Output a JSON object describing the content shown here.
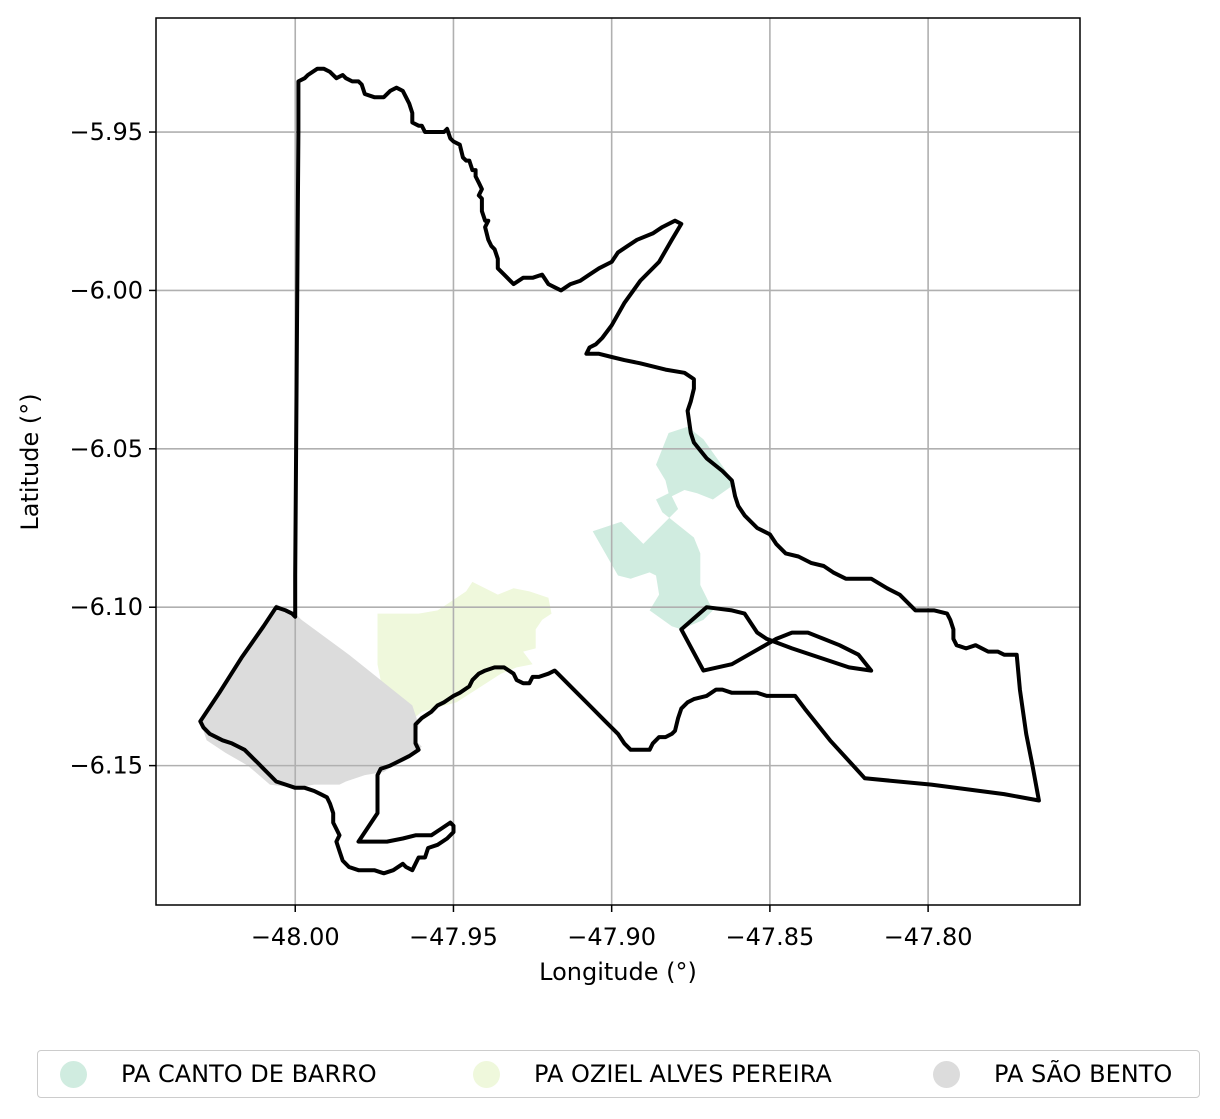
{
  "chart_data": {
    "type": "map",
    "xlabel": "Longitude (°)",
    "ylabel": "Latitude (°)",
    "xlim": [
      -48.044,
      -47.752
    ],
    "ylim": [
      -6.194,
      -5.914
    ],
    "xticks": [
      -48.0,
      -47.95,
      -47.9,
      -47.85,
      -47.8
    ],
    "xtick_labels": [
      "−48.00",
      "−47.95",
      "−47.90",
      "−47.85",
      "−47.80"
    ],
    "yticks": [
      -5.95,
      -6.0,
      -6.05,
      -6.1,
      -6.15
    ],
    "ytick_labels": [
      "−5.95",
      "−6.00",
      "−6.05",
      "−6.10",
      "−6.15"
    ],
    "grid": true,
    "legend_placement": "bottom-center",
    "outline_color": "#000000",
    "regions": [
      {
        "name": "PA CANTO DE BARRO",
        "color": "#d0ece0",
        "coords": [
          [
            -47.906,
            -6.076
          ],
          [
            -47.897,
            -6.073
          ],
          [
            -47.89,
            -6.08
          ],
          [
            -47.884,
            -6.074
          ],
          [
            -47.879,
            -6.069
          ],
          [
            -47.881,
            -6.065
          ],
          [
            -47.877,
            -6.063
          ],
          [
            -47.873,
            -6.064
          ],
          [
            -47.868,
            -6.066
          ],
          [
            -47.861,
            -6.061
          ],
          [
            -47.871,
            -6.047
          ],
          [
            -47.876,
            -6.043
          ],
          [
            -47.882,
            -6.045
          ],
          [
            -47.886,
            -6.055
          ],
          [
            -47.883,
            -6.06
          ],
          [
            -47.882,
            -6.064
          ],
          [
            -47.886,
            -6.066
          ],
          [
            -47.884,
            -6.07
          ],
          [
            -47.879,
            -6.074
          ],
          [
            -47.874,
            -6.078
          ],
          [
            -47.872,
            -6.083
          ],
          [
            -47.872,
            -6.093
          ],
          [
            -47.868,
            -6.101
          ],
          [
            -47.871,
            -6.104
          ],
          [
            -47.878,
            -6.107
          ],
          [
            -47.881,
            -6.106
          ],
          [
            -47.888,
            -6.101
          ],
          [
            -47.885,
            -6.096
          ],
          [
            -47.886,
            -6.09
          ],
          [
            -47.888,
            -6.089
          ],
          [
            -47.894,
            -6.091
          ],
          [
            -47.898,
            -6.09
          ]
        ]
      },
      {
        "name": "PA OZIEL ALVES PEREIRA",
        "color": "#eff8dc",
        "coords": [
          [
            -47.974,
            -6.102
          ],
          [
            -47.961,
            -6.102
          ],
          [
            -47.955,
            -6.101
          ],
          [
            -47.952,
            -6.099
          ],
          [
            -47.946,
            -6.095
          ],
          [
            -47.944,
            -6.092
          ],
          [
            -47.936,
            -6.096
          ],
          [
            -47.931,
            -6.094
          ],
          [
            -47.926,
            -6.095
          ],
          [
            -47.92,
            -6.097
          ],
          [
            -47.919,
            -6.102
          ],
          [
            -47.922,
            -6.104
          ],
          [
            -47.924,
            -6.107
          ],
          [
            -47.924,
            -6.113
          ],
          [
            -47.928,
            -6.114
          ],
          [
            -47.925,
            -6.118
          ],
          [
            -47.93,
            -6.119
          ],
          [
            -47.935,
            -6.121
          ],
          [
            -47.949,
            -6.13
          ],
          [
            -47.96,
            -6.133
          ],
          [
            -47.966,
            -6.138
          ],
          [
            -47.967,
            -6.144
          ],
          [
            -47.972,
            -6.128
          ],
          [
            -47.974,
            -6.118
          ]
        ]
      },
      {
        "name": "PA SÃO BENTO",
        "color": "#dcdcdc",
        "coords": [
          [
            -48.006,
            -6.099
          ],
          [
            -48.0,
            -6.102
          ],
          [
            -47.998,
            -6.104
          ],
          [
            -47.983,
            -6.115
          ],
          [
            -47.963,
            -6.131
          ],
          [
            -47.961,
            -6.137
          ],
          [
            -47.962,
            -6.142
          ],
          [
            -47.96,
            -6.144
          ],
          [
            -47.962,
            -6.146
          ],
          [
            -47.966,
            -6.148
          ],
          [
            -47.972,
            -6.152
          ],
          [
            -47.978,
            -6.153
          ],
          [
            -47.984,
            -6.155
          ],
          [
            -47.986,
            -6.156
          ],
          [
            -47.994,
            -6.156
          ],
          [
            -48.0,
            -6.157
          ],
          [
            -48.008,
            -6.156
          ],
          [
            -48.015,
            -6.15
          ],
          [
            -48.022,
            -6.146
          ],
          [
            -48.028,
            -6.142
          ],
          [
            -48.03,
            -6.136
          ],
          [
            -48.02,
            -6.122
          ]
        ]
      }
    ],
    "outline": [
      [
        -47.999,
        -5.934
      ],
      [
        -47.997,
        -5.933
      ],
      [
        -47.996,
        -5.932
      ],
      [
        -47.993,
        -5.93
      ],
      [
        -47.991,
        -5.93
      ],
      [
        -47.989,
        -5.931
      ],
      [
        -47.987,
        -5.933
      ],
      [
        -47.985,
        -5.932
      ],
      [
        -47.984,
        -5.933
      ],
      [
        -47.982,
        -5.934
      ],
      [
        -47.98,
        -5.934
      ],
      [
        -47.979,
        -5.935
      ],
      [
        -47.978,
        -5.938
      ],
      [
        -47.975,
        -5.939
      ],
      [
        -47.972,
        -5.939
      ],
      [
        -47.97,
        -5.937
      ],
      [
        -47.968,
        -5.936
      ],
      [
        -47.966,
        -5.937
      ],
      [
        -47.965,
        -5.939
      ],
      [
        -47.964,
        -5.941
      ],
      [
        -47.963,
        -5.944
      ],
      [
        -47.963,
        -5.947
      ],
      [
        -47.961,
        -5.948
      ],
      [
        -47.96,
        -5.948
      ],
      [
        -47.959,
        -5.95
      ],
      [
        -47.956,
        -5.95
      ],
      [
        -47.955,
        -5.95
      ],
      [
        -47.953,
        -5.95
      ],
      [
        -47.952,
        -5.949
      ],
      [
        -47.951,
        -5.952
      ],
      [
        -47.95,
        -5.953
      ],
      [
        -47.948,
        -5.954
      ],
      [
        -47.947,
        -5.958
      ],
      [
        -47.946,
        -5.959
      ],
      [
        -47.945,
        -5.959
      ],
      [
        -47.944,
        -5.962
      ],
      [
        -47.943,
        -5.962
      ],
      [
        -47.943,
        -5.964
      ],
      [
        -47.942,
        -5.966
      ],
      [
        -47.941,
        -5.968
      ],
      [
        -47.942,
        -5.97
      ],
      [
        -47.941,
        -5.971
      ],
      [
        -47.941,
        -5.975
      ],
      [
        -47.94,
        -5.978
      ],
      [
        -47.939,
        -5.978
      ],
      [
        -47.94,
        -5.98
      ],
      [
        -47.939,
        -5.984
      ],
      [
        -47.938,
        -5.986
      ],
      [
        -47.937,
        -5.987
      ],
      [
        -47.936,
        -5.99
      ],
      [
        -47.936,
        -5.993
      ],
      [
        -47.934,
        -5.995
      ],
      [
        -47.932,
        -5.997
      ],
      [
        -47.931,
        -5.998
      ],
      [
        -47.928,
        -5.996
      ],
      [
        -47.925,
        -5.996
      ],
      [
        -47.922,
        -5.995
      ],
      [
        -47.92,
        -5.998
      ],
      [
        -47.918,
        -5.999
      ],
      [
        -47.916,
        -6.0
      ],
      [
        -47.913,
        -5.998
      ],
      [
        -47.91,
        -5.997
      ],
      [
        -47.907,
        -5.995
      ],
      [
        -47.904,
        -5.993
      ],
      [
        -47.9,
        -5.991
      ],
      [
        -47.898,
        -5.988
      ],
      [
        -47.895,
        -5.986
      ],
      [
        -47.892,
        -5.984
      ],
      [
        -47.887,
        -5.982
      ],
      [
        -47.884,
        -5.98
      ],
      [
        -47.88,
        -5.978
      ],
      [
        -47.878,
        -5.979
      ],
      [
        -47.881,
        -5.984
      ],
      [
        -47.885,
        -5.991
      ],
      [
        -47.891,
        -5.997
      ],
      [
        -47.896,
        -6.004
      ],
      [
        -47.9,
        -6.011
      ],
      [
        -47.903,
        -6.015
      ],
      [
        -47.905,
        -6.017
      ],
      [
        -47.907,
        -6.018
      ],
      [
        -47.908,
        -6.02
      ],
      [
        -47.904,
        -6.02
      ],
      [
        -47.9,
        -6.021
      ],
      [
        -47.896,
        -6.022
      ],
      [
        -47.891,
        -6.023
      ],
      [
        -47.883,
        -6.025
      ],
      [
        -47.877,
        -6.026
      ],
      [
        -47.874,
        -6.028
      ],
      [
        -47.874,
        -6.031
      ],
      [
        -47.875,
        -6.035
      ],
      [
        -47.876,
        -6.038
      ],
      [
        -47.875,
        -6.045
      ],
      [
        -47.874,
        -6.048
      ],
      [
        -47.87,
        -6.053
      ],
      [
        -47.865,
        -6.057
      ],
      [
        -47.862,
        -6.06
      ],
      [
        -47.861,
        -6.065
      ],
      [
        -47.86,
        -6.068
      ],
      [
        -47.858,
        -6.071
      ],
      [
        -47.854,
        -6.075
      ],
      [
        -47.852,
        -6.076
      ],
      [
        -47.85,
        -6.077
      ],
      [
        -47.848,
        -6.08
      ],
      [
        -47.845,
        -6.083
      ],
      [
        -47.841,
        -6.084
      ],
      [
        -47.837,
        -6.086
      ],
      [
        -47.833,
        -6.087
      ],
      [
        -47.83,
        -6.089
      ],
      [
        -47.826,
        -6.091
      ],
      [
        -47.822,
        -6.091
      ],
      [
        -47.818,
        -6.091
      ],
      [
        -47.813,
        -6.094
      ],
      [
        -47.809,
        -6.096
      ],
      [
        -47.806,
        -6.099
      ],
      [
        -47.804,
        -6.101
      ],
      [
        -47.801,
        -6.101
      ],
      [
        -47.798,
        -6.101
      ],
      [
        -47.794,
        -6.102
      ],
      [
        -47.793,
        -6.104
      ],
      [
        -47.792,
        -6.107
      ],
      [
        -47.792,
        -6.11
      ],
      [
        -47.791,
        -6.112
      ],
      [
        -47.788,
        -6.113
      ],
      [
        -47.785,
        -6.112
      ],
      [
        -47.781,
        -6.114
      ],
      [
        -47.778,
        -6.114
      ],
      [
        -47.776,
        -6.115
      ],
      [
        -47.772,
        -6.115
      ],
      [
        -47.771,
        -6.126
      ],
      [
        -47.769,
        -6.14
      ],
      [
        -47.767,
        -6.15
      ],
      [
        -47.765,
        -6.161
      ],
      [
        -47.776,
        -6.159
      ],
      [
        -47.799,
        -6.156
      ],
      [
        -47.82,
        -6.154
      ],
      [
        -47.831,
        -6.142
      ],
      [
        -47.839,
        -6.132
      ],
      [
        -47.842,
        -6.128
      ],
      [
        -47.847,
        -6.128
      ],
      [
        -47.851,
        -6.128
      ],
      [
        -47.854,
        -6.127
      ],
      [
        -47.859,
        -6.127
      ],
      [
        -47.862,
        -6.127
      ],
      [
        -47.865,
        -6.126
      ],
      [
        -47.867,
        -6.126
      ],
      [
        -47.87,
        -6.128
      ],
      [
        -47.874,
        -6.129
      ],
      [
        -47.876,
        -6.13
      ],
      [
        -47.878,
        -6.132
      ],
      [
        -47.879,
        -6.135
      ],
      [
        -47.88,
        -6.139
      ],
      [
        -47.881,
        -6.14
      ],
      [
        -47.883,
        -6.141
      ],
      [
        -47.885,
        -6.141
      ],
      [
        -47.887,
        -6.143
      ],
      [
        -47.888,
        -6.145
      ],
      [
        -47.891,
        -6.145
      ],
      [
        -47.894,
        -6.145
      ],
      [
        -47.896,
        -6.143
      ],
      [
        -47.898,
        -6.14
      ],
      [
        -47.902,
        -6.136
      ],
      [
        -47.907,
        -6.131
      ],
      [
        -47.912,
        -6.126
      ],
      [
        -47.917,
        -6.121
      ],
      [
        -47.918,
        -6.12
      ],
      [
        -47.92,
        -6.121
      ],
      [
        -47.923,
        -6.122
      ],
      [
        -47.925,
        -6.122
      ],
      [
        -47.926,
        -6.124
      ],
      [
        -47.928,
        -6.124
      ],
      [
        -47.93,
        -6.123
      ],
      [
        -47.931,
        -6.121
      ],
      [
        -47.934,
        -6.119
      ],
      [
        -47.937,
        -6.119
      ],
      [
        -47.94,
        -6.12
      ],
      [
        -47.942,
        -6.121
      ],
      [
        -47.944,
        -6.123
      ],
      [
        -47.945,
        -6.125
      ],
      [
        -47.948,
        -6.127
      ],
      [
        -47.95,
        -6.128
      ],
      [
        -47.953,
        -6.13
      ],
      [
        -47.955,
        -6.131
      ],
      [
        -47.957,
        -6.133
      ],
      [
        -47.96,
        -6.135
      ],
      [
        -47.962,
        -6.137
      ],
      [
        -47.962,
        -6.14
      ],
      [
        -47.962,
        -6.143
      ],
      [
        -47.961,
        -6.145
      ],
      [
        -47.964,
        -6.147
      ],
      [
        -47.966,
        -6.148
      ],
      [
        -47.97,
        -6.15
      ],
      [
        -47.973,
        -6.151
      ],
      [
        -47.974,
        -6.153
      ],
      [
        -47.974,
        -6.158
      ],
      [
        -47.974,
        -6.165
      ],
      [
        -47.98,
        -6.174
      ],
      [
        -47.975,
        -6.174
      ],
      [
        -47.971,
        -6.174
      ],
      [
        -47.966,
        -6.173
      ],
      [
        -47.962,
        -6.172
      ],
      [
        -47.957,
        -6.172
      ],
      [
        -47.954,
        -6.17
      ],
      [
        -47.951,
        -6.168
      ],
      [
        -47.95,
        -6.169
      ],
      [
        -47.95,
        -6.171
      ],
      [
        -47.952,
        -6.173
      ],
      [
        -47.955,
        -6.175
      ],
      [
        -47.958,
        -6.176
      ],
      [
        -47.959,
        -6.179
      ],
      [
        -47.961,
        -6.179
      ],
      [
        -47.962,
        -6.181
      ],
      [
        -47.963,
        -6.183
      ],
      [
        -47.965,
        -6.182
      ],
      [
        -47.966,
        -6.181
      ],
      [
        -47.969,
        -6.183
      ],
      [
        -47.972,
        -6.184
      ],
      [
        -47.975,
        -6.183
      ],
      [
        -47.978,
        -6.183
      ],
      [
        -47.98,
        -6.183
      ],
      [
        -47.983,
        -6.182
      ],
      [
        -47.985,
        -6.18
      ],
      [
        -47.986,
        -6.177
      ],
      [
        -47.987,
        -6.174
      ],
      [
        -47.986,
        -6.172
      ],
      [
        -47.987,
        -6.17
      ],
      [
        -47.988,
        -6.168
      ],
      [
        -47.988,
        -6.165
      ],
      [
        -47.989,
        -6.162
      ],
      [
        -47.99,
        -6.16
      ],
      [
        -47.992,
        -6.159
      ],
      [
        -47.994,
        -6.158
      ],
      [
        -47.997,
        -6.157
      ],
      [
        -48.0,
        -6.157
      ],
      [
        -48.003,
        -6.156
      ],
      [
        -48.006,
        -6.155
      ],
      [
        -48.008,
        -6.153
      ],
      [
        -48.01,
        -6.151
      ],
      [
        -48.012,
        -6.149
      ],
      [
        -48.014,
        -6.147
      ],
      [
        -48.016,
        -6.145
      ],
      [
        -48.018,
        -6.144
      ],
      [
        -48.02,
        -6.143
      ],
      [
        -48.023,
        -6.142
      ],
      [
        -48.025,
        -6.141
      ],
      [
        -48.027,
        -6.14
      ],
      [
        -48.029,
        -6.138
      ],
      [
        -48.03,
        -6.136
      ],
      [
        -48.024,
        -6.127
      ],
      [
        -48.017,
        -6.116
      ],
      [
        -48.01,
        -6.106
      ],
      [
        -48.006,
        -6.1
      ],
      [
        -48.003,
        -6.101
      ],
      [
        -48.001,
        -6.102
      ],
      [
        -48.0,
        -6.103
      ],
      [
        -48.0,
        -6.09
      ],
      [
        -47.999,
        -5.95
      ],
      [
        -47.999,
        -5.934
      ]
    ],
    "inner_outline": [
      [
        -47.878,
        -6.107
      ],
      [
        -47.87,
        -6.1
      ],
      [
        -47.862,
        -6.101
      ],
      [
        -47.858,
        -6.102
      ],
      [
        -47.854,
        -6.108
      ],
      [
        -47.851,
        -6.11
      ],
      [
        -47.843,
        -6.113
      ],
      [
        -47.834,
        -6.116
      ],
      [
        -47.825,
        -6.119
      ],
      [
        -47.818,
        -6.12
      ],
      [
        -47.822,
        -6.115
      ],
      [
        -47.828,
        -6.112
      ],
      [
        -47.833,
        -6.11
      ],
      [
        -47.838,
        -6.108
      ],
      [
        -47.843,
        -6.108
      ],
      [
        -47.848,
        -6.11
      ],
      [
        -47.862,
        -6.118
      ],
      [
        -47.871,
        -6.12
      ],
      [
        -47.878,
        -6.107
      ]
    ]
  }
}
